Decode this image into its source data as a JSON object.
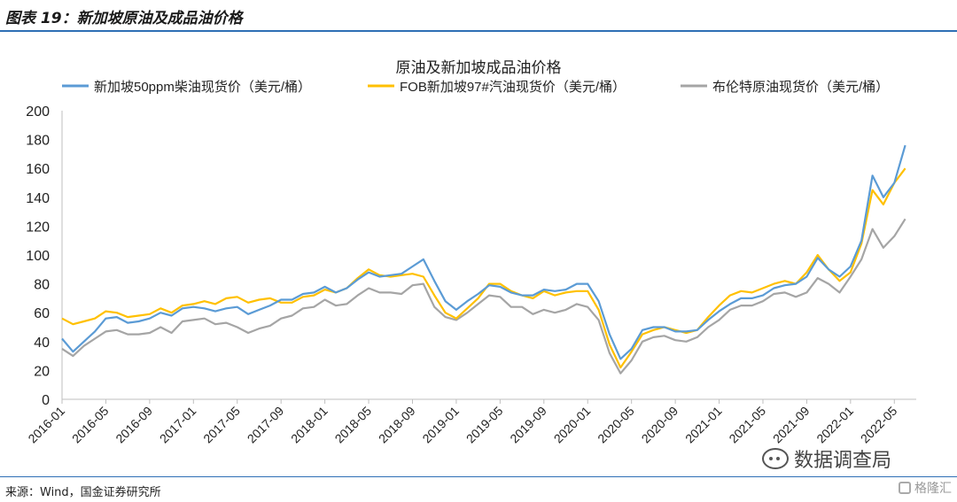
{
  "figure": {
    "title": "图表 19：新加坡原油及成品油价格",
    "source": "来源：Wind，国金证券研究所",
    "watermark": "数据调查局",
    "badge": "格隆汇"
  },
  "chart_data": {
    "type": "line",
    "title": "原油及新加坡成品油价格",
    "ylim": [
      0,
      200
    ],
    "yticks": [
      0,
      20,
      40,
      60,
      80,
      100,
      120,
      140,
      160,
      180,
      200
    ],
    "xlim": [
      "2016-01",
      "2022-07"
    ],
    "xticks": [
      "2016-01",
      "2016-05",
      "2016-09",
      "2017-01",
      "2017-05",
      "2017-09",
      "2018-01",
      "2018-05",
      "2018-09",
      "2019-01",
      "2019-05",
      "2019-09",
      "2020-01",
      "2020-05",
      "2020-09",
      "2021-01",
      "2021-05",
      "2021-09",
      "2022-01",
      "2022-05"
    ],
    "grid": false,
    "legend": "top",
    "colors": {
      "diesel": "#5b9bd5",
      "gasoline": "#ffc000",
      "brent": "#a5a5a5"
    },
    "series": [
      {
        "name": "新加坡50ppm柴油现货价（美元/桶）",
        "key": "diesel",
        "x": [
          "2016-01",
          "2016-02",
          "2016-03",
          "2016-04",
          "2016-05",
          "2016-06",
          "2016-07",
          "2016-08",
          "2016-09",
          "2016-10",
          "2016-11",
          "2016-12",
          "2017-01",
          "2017-02",
          "2017-03",
          "2017-04",
          "2017-05",
          "2017-06",
          "2017-07",
          "2017-08",
          "2017-09",
          "2017-10",
          "2017-11",
          "2017-12",
          "2018-01",
          "2018-02",
          "2018-03",
          "2018-04",
          "2018-05",
          "2018-06",
          "2018-07",
          "2018-08",
          "2018-09",
          "2018-10",
          "2018-11",
          "2018-12",
          "2019-01",
          "2019-02",
          "2019-03",
          "2019-04",
          "2019-05",
          "2019-06",
          "2019-07",
          "2019-08",
          "2019-09",
          "2019-10",
          "2019-11",
          "2019-12",
          "2020-01",
          "2020-02",
          "2020-03",
          "2020-04",
          "2020-05",
          "2020-06",
          "2020-07",
          "2020-08",
          "2020-09",
          "2020-10",
          "2020-11",
          "2020-12",
          "2021-01",
          "2021-02",
          "2021-03",
          "2021-04",
          "2021-05",
          "2021-06",
          "2021-07",
          "2021-08",
          "2021-09",
          "2021-10",
          "2021-11",
          "2021-12",
          "2022-01",
          "2022-02",
          "2022-03",
          "2022-04",
          "2022-05",
          "2022-06"
        ],
        "values": [
          42,
          33,
          40,
          47,
          56,
          57,
          53,
          54,
          56,
          60,
          58,
          63,
          64,
          63,
          61,
          63,
          64,
          59,
          62,
          65,
          69,
          69,
          73,
          74,
          78,
          74,
          77,
          83,
          88,
          85,
          86,
          87,
          92,
          97,
          82,
          68,
          62,
          68,
          73,
          79,
          78,
          74,
          72,
          72,
          76,
          75,
          76,
          80,
          80,
          68,
          45,
          28,
          35,
          48,
          50,
          50,
          47,
          47,
          48,
          55,
          61,
          66,
          70,
          70,
          72,
          77,
          79,
          80,
          85,
          98,
          90,
          85,
          92,
          110,
          155,
          140,
          150,
          176
        ]
      },
      {
        "name": "FOB新加坡97#汽油现货价（美元/桶）",
        "key": "gasoline",
        "x": [
          "2016-01",
          "2016-02",
          "2016-03",
          "2016-04",
          "2016-05",
          "2016-06",
          "2016-07",
          "2016-08",
          "2016-09",
          "2016-10",
          "2016-11",
          "2016-12",
          "2017-01",
          "2017-02",
          "2017-03",
          "2017-04",
          "2017-05",
          "2017-06",
          "2017-07",
          "2017-08",
          "2017-09",
          "2017-10",
          "2017-11",
          "2017-12",
          "2018-01",
          "2018-02",
          "2018-03",
          "2018-04",
          "2018-05",
          "2018-06",
          "2018-07",
          "2018-08",
          "2018-09",
          "2018-10",
          "2018-11",
          "2018-12",
          "2019-01",
          "2019-02",
          "2019-03",
          "2019-04",
          "2019-05",
          "2019-06",
          "2019-07",
          "2019-08",
          "2019-09",
          "2019-10",
          "2019-11",
          "2019-12",
          "2020-01",
          "2020-02",
          "2020-03",
          "2020-04",
          "2020-05",
          "2020-06",
          "2020-07",
          "2020-08",
          "2020-09",
          "2020-10",
          "2020-11",
          "2020-12",
          "2021-01",
          "2021-02",
          "2021-03",
          "2021-04",
          "2021-05",
          "2021-06",
          "2021-07",
          "2021-08",
          "2021-09",
          "2021-10",
          "2021-11",
          "2021-12",
          "2022-01",
          "2022-02",
          "2022-03",
          "2022-04",
          "2022-05",
          "2022-06"
        ],
        "values": [
          56,
          52,
          54,
          56,
          61,
          60,
          57,
          58,
          59,
          63,
          60,
          65,
          66,
          68,
          66,
          70,
          71,
          67,
          69,
          70,
          67,
          67,
          71,
          72,
          76,
          74,
          77,
          84,
          90,
          86,
          85,
          86,
          87,
          85,
          72,
          60,
          56,
          63,
          70,
          80,
          80,
          75,
          72,
          70,
          75,
          72,
          74,
          75,
          75,
          62,
          38,
          22,
          33,
          45,
          48,
          50,
          48,
          46,
          48,
          57,
          65,
          72,
          75,
          74,
          77,
          80,
          82,
          80,
          88,
          100,
          90,
          82,
          88,
          108,
          145,
          135,
          150,
          160
        ]
      },
      {
        "name": "布伦特原油现货价（美元/桶）",
        "key": "brent",
        "x": [
          "2016-01",
          "2016-02",
          "2016-03",
          "2016-04",
          "2016-05",
          "2016-06",
          "2016-07",
          "2016-08",
          "2016-09",
          "2016-10",
          "2016-11",
          "2016-12",
          "2017-01",
          "2017-02",
          "2017-03",
          "2017-04",
          "2017-05",
          "2017-06",
          "2017-07",
          "2017-08",
          "2017-09",
          "2017-10",
          "2017-11",
          "2017-12",
          "2018-01",
          "2018-02",
          "2018-03",
          "2018-04",
          "2018-05",
          "2018-06",
          "2018-07",
          "2018-08",
          "2018-09",
          "2018-10",
          "2018-11",
          "2018-12",
          "2019-01",
          "2019-02",
          "2019-03",
          "2019-04",
          "2019-05",
          "2019-06",
          "2019-07",
          "2019-08",
          "2019-09",
          "2019-10",
          "2019-11",
          "2019-12",
          "2020-01",
          "2020-02",
          "2020-03",
          "2020-04",
          "2020-05",
          "2020-06",
          "2020-07",
          "2020-08",
          "2020-09",
          "2020-10",
          "2020-11",
          "2020-12",
          "2021-01",
          "2021-02",
          "2021-03",
          "2021-04",
          "2021-05",
          "2021-06",
          "2021-07",
          "2021-08",
          "2021-09",
          "2021-10",
          "2021-11",
          "2021-12",
          "2022-01",
          "2022-02",
          "2022-03",
          "2022-04",
          "2022-05",
          "2022-06"
        ],
        "values": [
          35,
          30,
          37,
          42,
          47,
          48,
          45,
          45,
          46,
          50,
          46,
          54,
          55,
          56,
          52,
          53,
          50,
          46,
          49,
          51,
          56,
          58,
          63,
          64,
          69,
          65,
          66,
          72,
          77,
          74,
          74,
          73,
          79,
          80,
          64,
          57,
          55,
          60,
          66,
          72,
          71,
          64,
          64,
          59,
          62,
          60,
          62,
          66,
          64,
          55,
          32,
          18,
          27,
          40,
          43,
          44,
          41,
          40,
          43,
          50,
          55,
          62,
          65,
          65,
          68,
          73,
          74,
          71,
          74,
          84,
          80,
          74,
          85,
          97,
          118,
          105,
          113,
          125
        ]
      }
    ]
  }
}
